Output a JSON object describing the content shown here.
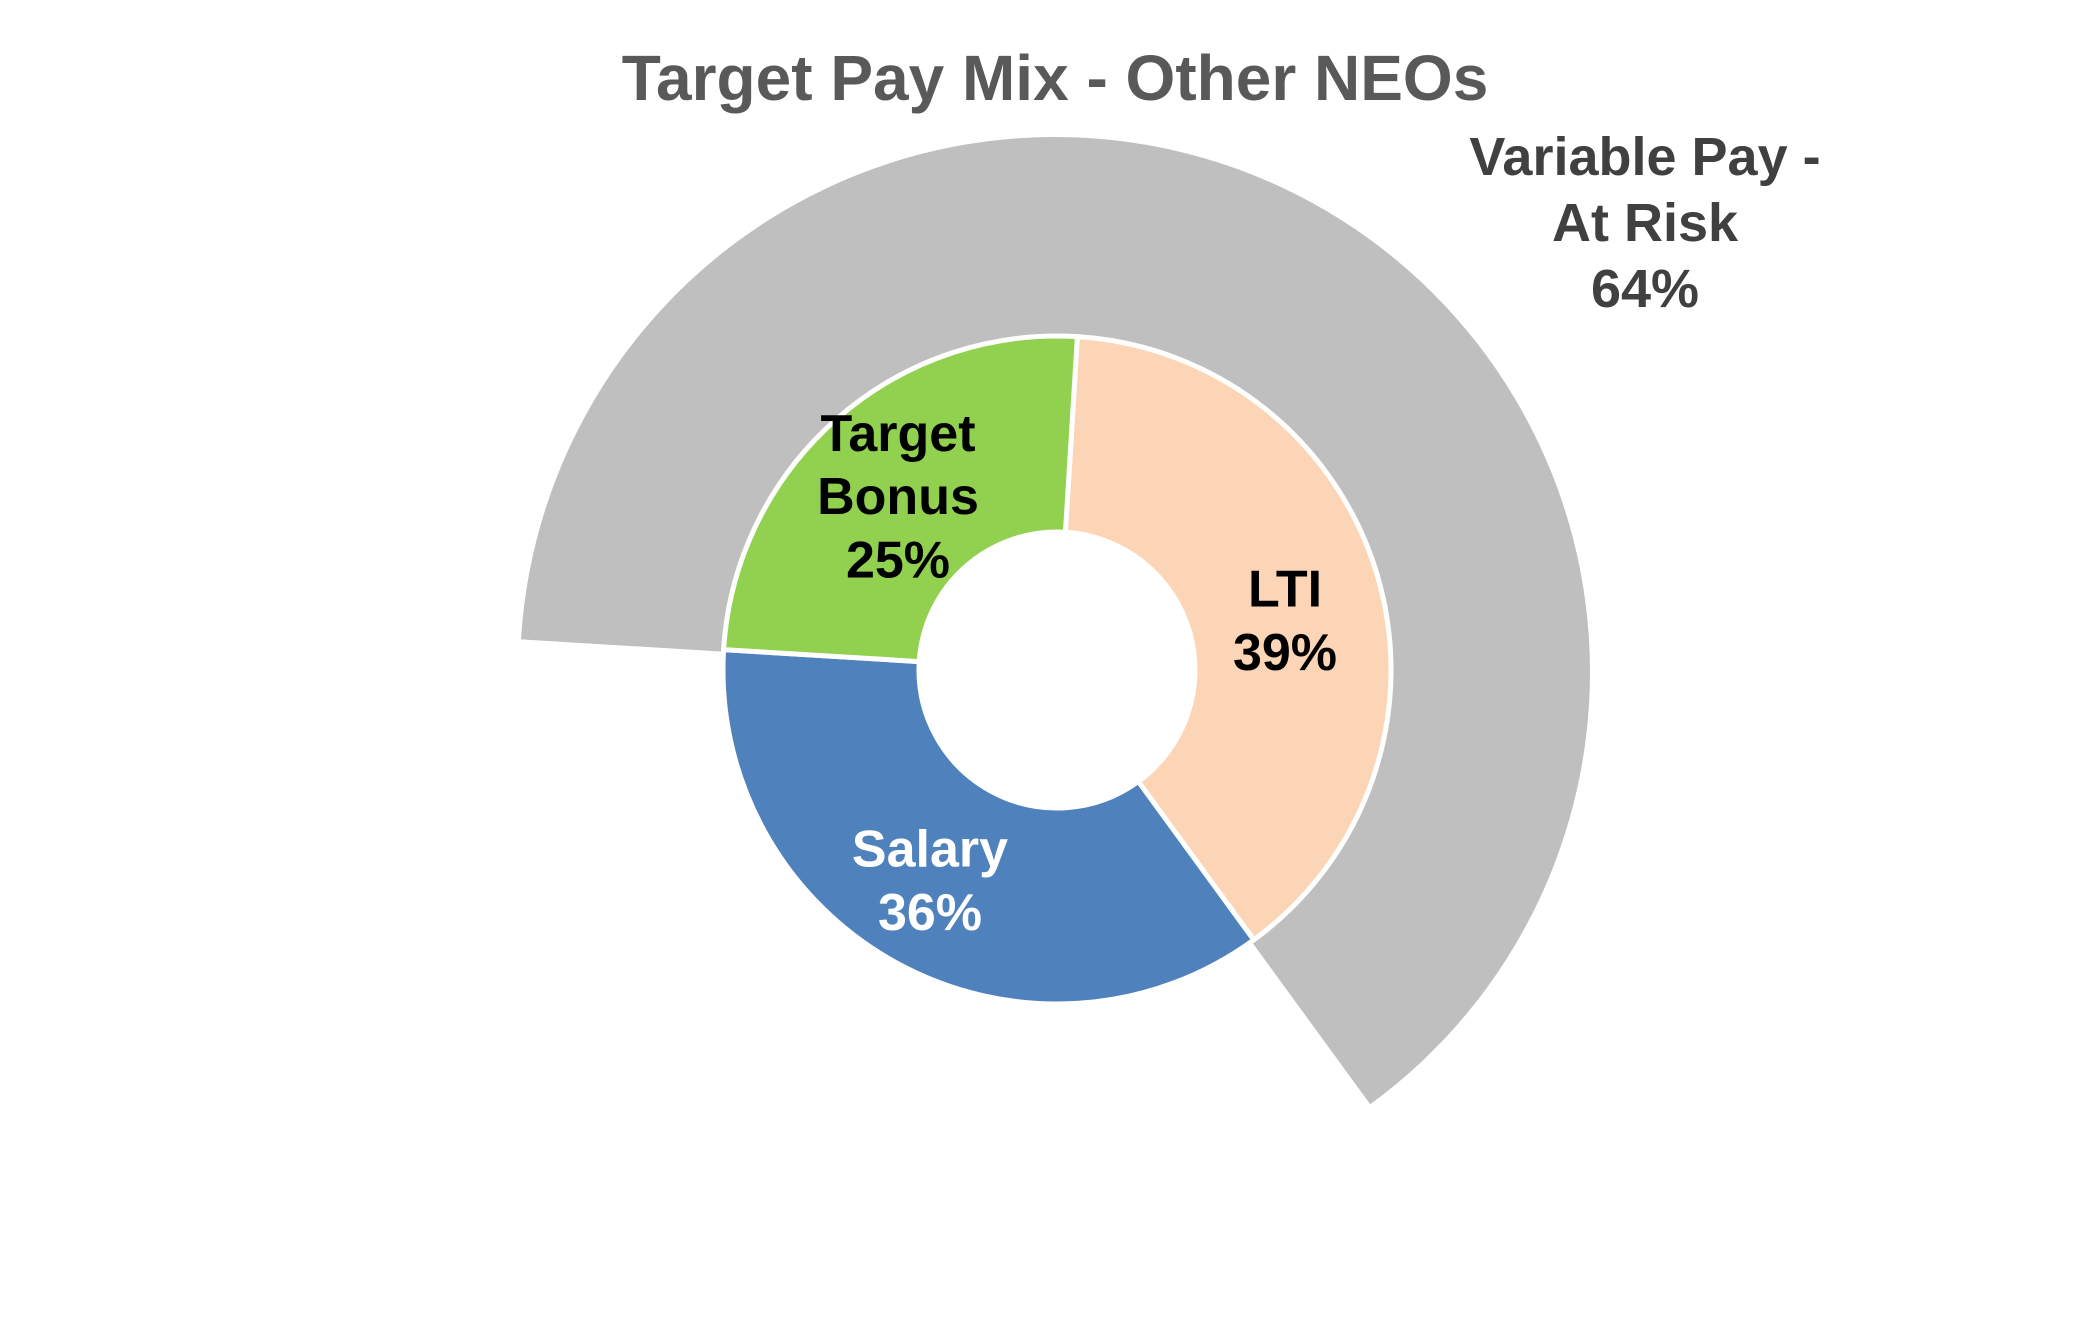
{
  "chart_data": {
    "type": "pie",
    "title": "Target Pay Mix - Other NEOs",
    "inner_ring": [
      {
        "label": "Salary",
        "value": 36,
        "value_label": "36%",
        "color": "#4f81bd",
        "text_color": "#ffffff"
      },
      {
        "label": "Target Bonus",
        "label_lines": [
          "Target",
          "Bonus"
        ],
        "value": 25,
        "value_label": "25%",
        "color": "#92d050",
        "text_color": "#000000"
      },
      {
        "label": "LTI",
        "value": 39,
        "value_label": "39%",
        "color": "#fbd5b5",
        "text_color": "#000000"
      }
    ],
    "outer_ring": [
      {
        "label": "Variable Pay - At Risk",
        "label_lines": [
          "Variable Pay -",
          "At Risk"
        ],
        "value": 64,
        "value_label": "64%",
        "color": "#bfbfbf",
        "text_color": "#404040"
      }
    ]
  }
}
